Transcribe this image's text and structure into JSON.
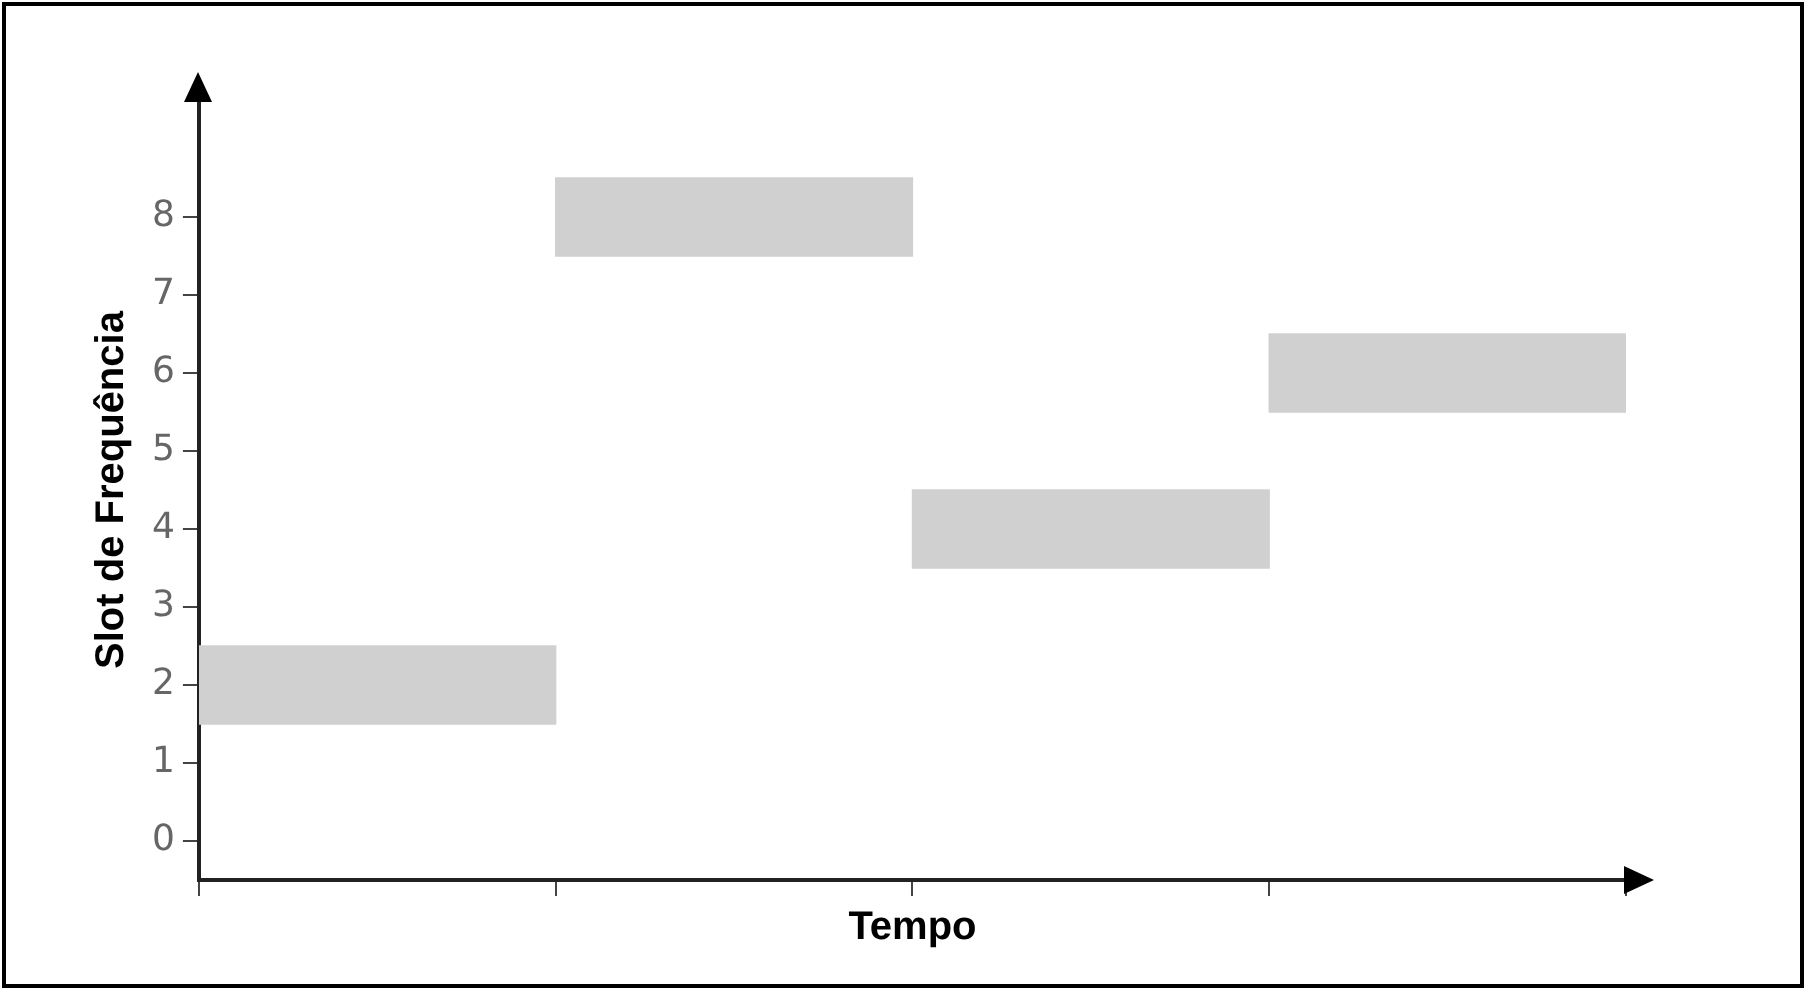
{
  "chart_data": {
    "type": "bar",
    "xlabel": "Tempo",
    "ylabel": "Slot de Frequência",
    "categories": [
      null,
      null,
      null,
      null
    ],
    "values": [
      1,
      1,
      1,
      1
    ],
    "base": [
      1.5,
      7.5,
      3.5,
      5.5
    ],
    "color": "#d0d0d0",
    "ylim": [
      -0.5,
      9.5
    ],
    "yticks": [
      0,
      1,
      2,
      3,
      4,
      5,
      6,
      7,
      8
    ],
    "grid": false,
    "legend": false,
    "tick_labels": "y"
  }
}
